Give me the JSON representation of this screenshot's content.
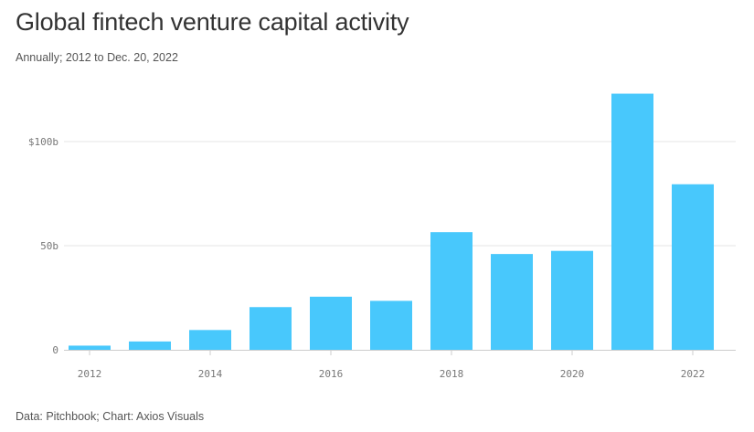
{
  "header": {
    "title": "Global fintech venture capital activity",
    "subtitle": "Annually; 2012 to Dec. 20, 2022"
  },
  "footer": {
    "source": "Data: Pitchbook; Chart: Axios Visuals"
  },
  "colors": {
    "bar": "#48c8fc",
    "grid": "#e6e6e6",
    "axis": "#cccccc"
  },
  "chart_data": {
    "type": "bar",
    "categories": [
      "2012",
      "2013",
      "2014",
      "2015",
      "2016",
      "2017",
      "2018",
      "2019",
      "2020",
      "2021",
      "2022"
    ],
    "values": [
      2,
      4,
      9.5,
      20.5,
      25.5,
      23.5,
      56.5,
      46,
      47.5,
      123,
      79.5
    ],
    "ylim": [
      0,
      125
    ],
    "yticks": [
      0,
      50,
      100
    ],
    "ytick_labels": [
      "0",
      "50b",
      "$100b"
    ],
    "xtick_labels": [
      "2012",
      "",
      "2014",
      "",
      "2016",
      "",
      "2018",
      "",
      "2020",
      "",
      "2022"
    ],
    "grid": true,
    "legend": "none",
    "xlabel": "",
    "ylabel": ""
  }
}
